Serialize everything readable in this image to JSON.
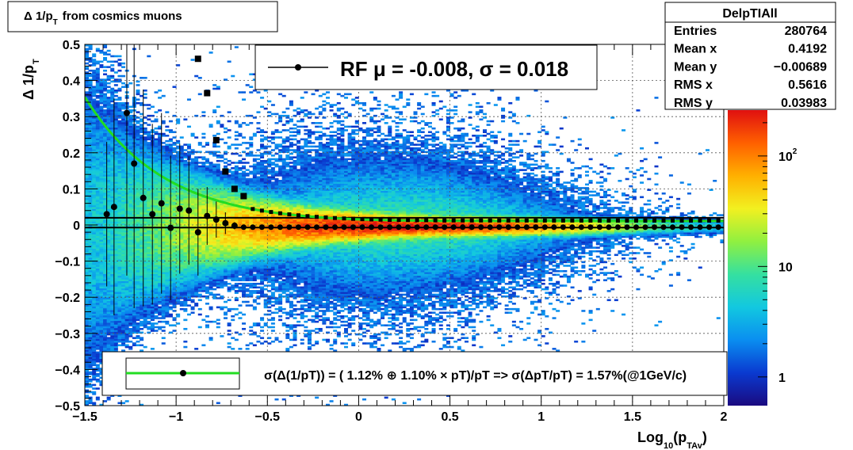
{
  "chart_data": {
    "type": "heatmap",
    "title_box": {
      "prefix": "Δ 1/p",
      "sub": "T",
      "suffix": "from cosmics muons"
    },
    "x_axis": {
      "label_main": "Log",
      "label_sub1": "10",
      "label_mid": "(p",
      "label_sub2": "TAv",
      "label_end": ")",
      "range": [
        -1.5,
        2.0
      ],
      "ticks": [
        {
          "v": -1.5,
          "t": "−1.5"
        },
        {
          "v": -1,
          "t": "−1"
        },
        {
          "v": -0.5,
          "t": "−0.5"
        },
        {
          "v": 0,
          "t": "0"
        },
        {
          "v": 0.5,
          "t": "0.5"
        },
        {
          "v": 1,
          "t": "1"
        },
        {
          "v": 1.5,
          "t": "1.5"
        },
        {
          "v": 2,
          "t": "2"
        }
      ]
    },
    "y_axis": {
      "label_main": "Δ 1/p",
      "label_sub": "T",
      "range": [
        -0.5,
        0.5
      ],
      "ticks": [
        {
          "v": 0.5,
          "t": "0.5"
        },
        {
          "v": 0.4,
          "t": "0.4"
        },
        {
          "v": 0.3,
          "t": "0.3"
        },
        {
          "v": 0.2,
          "t": "0.2"
        },
        {
          "v": 0.1,
          "t": "0.1"
        },
        {
          "v": 0,
          "t": "0"
        },
        {
          "v": -0.1,
          "t": "−0.1"
        },
        {
          "v": -0.2,
          "t": "−0.2"
        },
        {
          "v": -0.3,
          "t": "−0.3"
        },
        {
          "v": -0.4,
          "t": "−0.4"
        },
        {
          "v": -0.5,
          "t": "−0.5"
        }
      ]
    },
    "grid": true,
    "stats_box": {
      "title": "DelpTIAll",
      "rows": [
        {
          "label": "Entries",
          "value": "280764"
        },
        {
          "label": "Mean x",
          "value": "0.4192"
        },
        {
          "label": "Mean y",
          "value": "−0.00689"
        },
        {
          "label": "RMS x",
          "value": "0.5616"
        },
        {
          "label": "RMS y",
          "value": "0.03983"
        }
      ]
    },
    "legend_top": {
      "text": "RF μ = -0.008, σ =   0.018"
    },
    "legend_bottom": {
      "text": "σ(Δ(1/pT)) = ( 1.12% ⊕  1.10% × pT)/pT => σ(ΔpT/pT) =  1.57%(@1GeV/c)"
    },
    "color_scale": {
      "type": "log",
      "range": [
        0.55,
        260
      ],
      "labels": [
        {
          "v": 1,
          "t": "1"
        },
        {
          "v": 10,
          "t": "10"
        },
        {
          "v": 100,
          "t": "10",
          "exp": "2"
        }
      ],
      "stops": [
        "#1a0a80",
        "#0a3ad0",
        "#0a8ef0",
        "#12c8e0",
        "#35e0a0",
        "#90f040",
        "#f2f020",
        "#ffb000",
        "#ff6000",
        "#e01010"
      ]
    },
    "density_model": {
      "core_center": -0.004,
      "core_sigma_at_x0": 0.018,
      "peak_x": 0.25
    },
    "mean_points": [
      {
        "x": -1.38,
        "y": 0.03,
        "err": 0.2
      },
      {
        "x": -1.34,
        "y": 0.05,
        "err": 0.3
      },
      {
        "x": -1.27,
        "y": 0.31,
        "err": 0.45
      },
      {
        "x": -1.23,
        "y": 0.17,
        "err": 0.4
      },
      {
        "x": -1.18,
        "y": 0.075,
        "err": 0.3
      },
      {
        "x": -1.13,
        "y": 0.03,
        "err": 0.25
      },
      {
        "x": -1.08,
        "y": 0.06,
        "err": 0.25
      },
      {
        "x": -1.03,
        "y": -0.008,
        "err": 0.2
      },
      {
        "x": -0.98,
        "y": 0.045,
        "err": 0.18
      },
      {
        "x": -0.93,
        "y": 0.04,
        "err": 0.15
      },
      {
        "x": -0.88,
        "y": -0.02,
        "err": 0.12
      },
      {
        "x": -0.83,
        "y": 0.025,
        "err": 0.08
      },
      {
        "x": -0.78,
        "y": 0.015,
        "err": 0.05
      },
      {
        "x": -0.73,
        "y": 0.005,
        "err": 0.03
      },
      {
        "x": -0.68,
        "y": -0.002,
        "err": 0.01
      }
    ],
    "sigma_points": [
      {
        "x": -0.88,
        "y": 0.46
      },
      {
        "x": -0.83,
        "y": 0.365
      },
      {
        "x": -0.78,
        "y": 0.235
      },
      {
        "x": -0.73,
        "y": 0.148
      },
      {
        "x": -0.68,
        "y": 0.1
      },
      {
        "x": -0.63,
        "y": 0.08
      }
    ],
    "fit_curve": {
      "a": 0.0112,
      "b": 0.011,
      "color": "#22dd22"
    },
    "fit_dashed": {
      "a": 0.0112,
      "b": 0.0121,
      "color": "#000000"
    },
    "ref_lines": [
      0.02,
      -0.007
    ],
    "dense_mean_x_start": -0.63,
    "dense_mean_step": 0.05
  }
}
